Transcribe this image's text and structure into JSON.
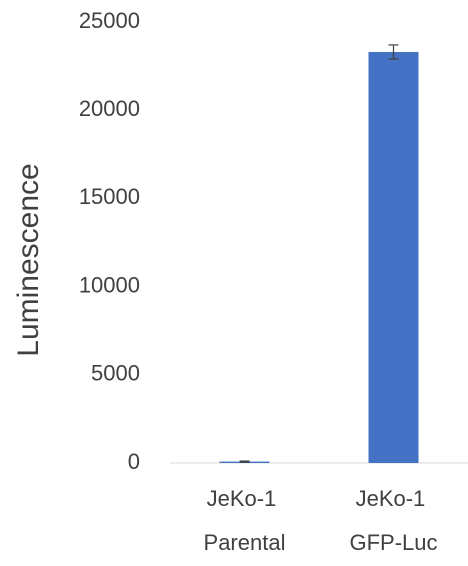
{
  "chart_data": {
    "type": "bar",
    "y_label": "Luminescence",
    "categories": [
      "JeKo-1 Parental",
      "JeKo-1 GFP-Luc"
    ],
    "values": [
      80,
      23300
    ],
    "errors": [
      30,
      400
    ],
    "color": "#4472c4",
    "ylim": [
      0,
      25000
    ],
    "yticks": [
      0,
      5000,
      10000,
      15000,
      20000,
      25000
    ],
    "grid": false
  }
}
